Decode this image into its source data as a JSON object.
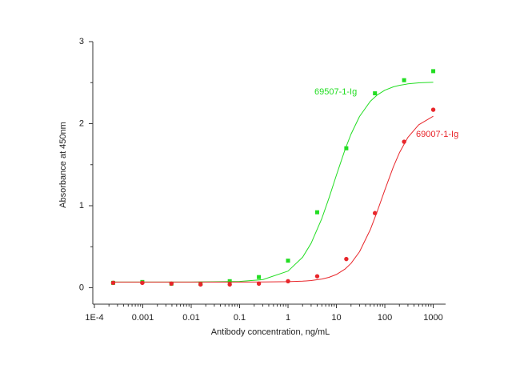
{
  "chart_data": {
    "type": "scatter",
    "x_label": "Antibody concentration, ng/mL",
    "y_label": "Absorbance at 450nm",
    "x_scale": "log",
    "xlim": [
      0.0001,
      1800
    ],
    "xticks": [
      {
        "value": 0.0001,
        "label": "1E-4"
      },
      0.001,
      0.01,
      0.1,
      1,
      10,
      100,
      1000
    ],
    "ylim": [
      -0.2,
      3
    ],
    "yticks": [
      0,
      1,
      2,
      3
    ],
    "minor_ticks": true,
    "x": [
      0.000244,
      0.000977,
      0.0039,
      0.0156,
      0.0625,
      0.25,
      1,
      4,
      16,
      62.5,
      250,
      1000
    ],
    "fit_x": [
      0.000244,
      0.01,
      0.1,
      0.3,
      1,
      2,
      3,
      5,
      7,
      10,
      15,
      20,
      30,
      50,
      70,
      100,
      150,
      200,
      300,
      500,
      1000
    ],
    "series": [
      {
        "name": "69507-1-Ig",
        "color": "#22dd22",
        "marker": "square",
        "values": [
          0.06,
          0.07,
          0.05,
          0.05,
          0.08,
          0.13,
          0.33,
          0.92,
          1.7,
          2.37,
          2.53,
          2.64
        ],
        "fit_values": [
          0.07,
          0.07,
          0.077,
          0.099,
          0.203,
          0.372,
          0.542,
          0.845,
          1.092,
          1.373,
          1.681,
          1.872,
          2.088,
          2.272,
          2.351,
          2.408,
          2.449,
          2.467,
          2.485,
          2.497,
          2.505
        ]
      },
      {
        "name": "69007-1-Ig",
        "color": "#e8262b",
        "marker": "circle",
        "values": [
          0.06,
          0.06,
          0.05,
          0.04,
          0.04,
          0.05,
          0.08,
          0.14,
          0.35,
          0.91,
          1.78,
          2.17
        ],
        "fit_values": [
          0.07,
          0.07,
          0.07,
          0.071,
          0.074,
          0.08,
          0.088,
          0.106,
          0.127,
          0.162,
          0.227,
          0.297,
          0.439,
          0.707,
          0.934,
          1.192,
          1.474,
          1.645,
          1.834,
          1.986,
          2.091
        ]
      }
    ]
  }
}
